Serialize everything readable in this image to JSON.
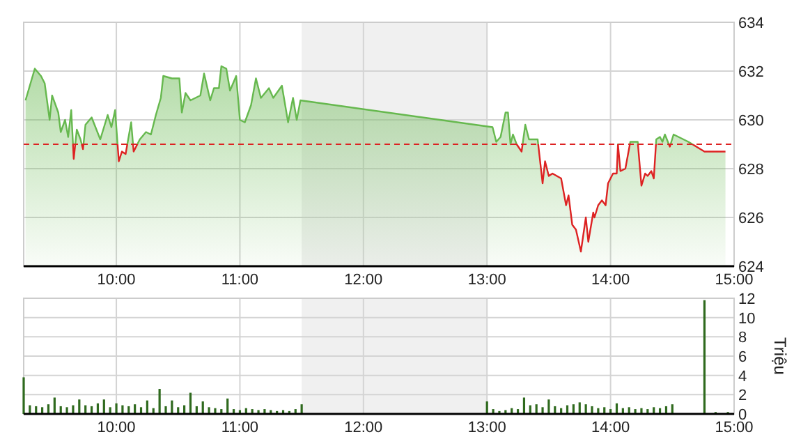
{
  "chart_data": [
    {
      "type": "area",
      "xlim": [
        9.25,
        15
      ],
      "ylim": [
        624,
        634
      ],
      "yticks": [
        624,
        626,
        628,
        630,
        632,
        634
      ],
      "xticks": [
        {
          "value": 10,
          "label": "10:00"
        },
        {
          "value": 11,
          "label": "11:00"
        },
        {
          "value": 12,
          "label": "12:00"
        },
        {
          "value": 13,
          "label": "13:00"
        },
        {
          "value": 14,
          "label": "14:00"
        },
        {
          "value": 15,
          "label": "15:00"
        }
      ],
      "grid": true,
      "line_style": "solid",
      "bands": [
        {
          "axis": "x",
          "from": 11.5,
          "to": 13,
          "color": "#f0f0f0"
        }
      ],
      "ref_lines": [
        {
          "axis": "y",
          "value": 629,
          "color": "#dd2222",
          "line_style": "dashed"
        }
      ],
      "series": [
        {
          "color": "#66b84e",
          "x": [
            9.265,
            9.34,
            9.39,
            9.42,
            9.46,
            9.48,
            9.53,
            9.55,
            9.585,
            9.61,
            9.635,
            9.655,
            9.68,
            9.71,
            9.73,
            9.75,
            9.8,
            9.87,
            9.93,
            9.96,
            9.99,
            10.02,
            10.045,
            10.075,
            10.12,
            10.14,
            10.19,
            10.24,
            10.28,
            10.32,
            10.36,
            10.38,
            10.45,
            10.51,
            10.53,
            10.56,
            10.6,
            10.68,
            10.71,
            10.76,
            10.79,
            10.83,
            10.85,
            10.89,
            10.92,
            10.97,
            11.0,
            11.04,
            11.09,
            11.13,
            11.17,
            11.235,
            11.27,
            11.34,
            11.39,
            11.43,
            11.46,
            11.49,
            13.045,
            13.075,
            13.11,
            13.15,
            13.17,
            13.19,
            13.21,
            13.24,
            13.28,
            13.31,
            13.34,
            13.41,
            13.45,
            13.47,
            13.5,
            13.53,
            13.6,
            13.64,
            13.66,
            13.69,
            13.72,
            13.76,
            13.8,
            13.82,
            13.86,
            13.87,
            13.9,
            13.93,
            13.96,
            13.98,
            14.02,
            14.05,
            14.06,
            14.08,
            14.12,
            14.16,
            14.22,
            14.25,
            14.28,
            14.3,
            14.33,
            14.35,
            14.37,
            14.4,
            14.42,
            14.44,
            14.48,
            14.51,
            14.63,
            14.76,
            14.93
          ],
          "values": [
            630.8,
            632.1,
            631.8,
            631.5,
            630.0,
            631.0,
            630.3,
            629.5,
            630.0,
            629.3,
            630.4,
            628.4,
            629.6,
            629.2,
            628.8,
            629.8,
            630.1,
            629.2,
            630.2,
            629.7,
            630.4,
            628.3,
            628.7,
            628.6,
            629.9,
            628.7,
            629.2,
            629.5,
            629.4,
            630.2,
            630.9,
            631.8,
            631.7,
            631.7,
            630.3,
            631.1,
            630.8,
            631.0,
            631.9,
            630.8,
            631.3,
            631.3,
            632.2,
            632.1,
            631.2,
            631.8,
            630.0,
            629.9,
            630.6,
            631.7,
            630.9,
            631.3,
            630.9,
            631.4,
            629.9,
            630.9,
            630.0,
            630.8,
            629.7,
            629.1,
            629.3,
            630.3,
            630.3,
            629.0,
            629.4,
            629.0,
            628.7,
            629.8,
            629.2,
            629.2,
            627.4,
            628.3,
            627.7,
            627.8,
            627.6,
            626.5,
            626.9,
            625.7,
            625.5,
            624.6,
            626.0,
            625.0,
            626.2,
            626.0,
            626.5,
            626.7,
            626.5,
            627.4,
            627.8,
            627.8,
            629.0,
            627.9,
            628.0,
            629.1,
            629.1,
            627.3,
            627.8,
            627.7,
            627.9,
            627.6,
            629.2,
            629.3,
            629.1,
            629.4,
            628.9,
            629.4,
            629.1,
            628.7,
            628.7
          ]
        }
      ]
    },
    {
      "type": "bar",
      "xlim": [
        9.25,
        15
      ],
      "ylim": [
        0,
        12
      ],
      "yticks": [
        0,
        2,
        4,
        6,
        8,
        10,
        12
      ],
      "ylabel": "Triệu",
      "xticks": [
        {
          "value": 10,
          "label": "10:00"
        },
        {
          "value": 11,
          "label": "11:00"
        },
        {
          "value": 12,
          "label": "12:00"
        },
        {
          "value": 13,
          "label": "13:00"
        },
        {
          "value": 14,
          "label": "14:00"
        },
        {
          "value": 15,
          "label": "15:00"
        }
      ],
      "grid": true,
      "bands": [
        {
          "axis": "x",
          "from": 11.5,
          "to": 13,
          "color": "#f0f0f0"
        }
      ],
      "series": [
        {
          "color": "#2f6a1e",
          "x": [
            9.25,
            9.3,
            9.35,
            9.4,
            9.45,
            9.5,
            9.55,
            9.6,
            9.65,
            9.7,
            9.75,
            9.8,
            9.85,
            9.9,
            9.95,
            10.0,
            10.05,
            10.1,
            10.15,
            10.2,
            10.25,
            10.3,
            10.35,
            10.4,
            10.45,
            10.5,
            10.55,
            10.6,
            10.65,
            10.7,
            10.75,
            10.8,
            10.85,
            10.9,
            10.95,
            11.0,
            11.05,
            11.1,
            11.15,
            11.2,
            11.25,
            11.3,
            11.35,
            11.4,
            11.45,
            11.5,
            13.0,
            13.05,
            13.1,
            13.15,
            13.2,
            13.25,
            13.3,
            13.35,
            13.4,
            13.45,
            13.5,
            13.55,
            13.6,
            13.65,
            13.7,
            13.75,
            13.8,
            13.85,
            13.9,
            13.95,
            14.0,
            14.05,
            14.1,
            14.15,
            14.2,
            14.25,
            14.3,
            14.35,
            14.4,
            14.45,
            14.5,
            14.76,
            14.85,
            14.95
          ],
          "values": [
            3.8,
            0.9,
            0.8,
            0.7,
            1.0,
            1.7,
            0.8,
            0.7,
            0.9,
            1.5,
            0.9,
            0.8,
            1.1,
            1.5,
            0.7,
            1.1,
            0.9,
            0.8,
            1.0,
            0.7,
            1.4,
            0.6,
            2.6,
            0.8,
            1.4,
            0.7,
            0.9,
            2.2,
            0.8,
            1.3,
            0.7,
            0.6,
            0.5,
            1.6,
            0.5,
            0.4,
            0.6,
            0.5,
            0.4,
            0.5,
            0.4,
            0.3,
            0.4,
            0.3,
            0.5,
            1.0,
            1.3,
            0.5,
            0.3,
            0.4,
            0.6,
            0.5,
            1.7,
            0.9,
            1.0,
            0.7,
            1.5,
            0.8,
            0.6,
            0.9,
            1.0,
            1.2,
            1.0,
            0.8,
            0.6,
            0.7,
            0.5,
            1.1,
            0.6,
            0.7,
            0.5,
            0.6,
            0.5,
            0.7,
            0.6,
            0.8,
            1.0,
            11.8,
            0.2,
            0.2
          ]
        }
      ]
    }
  ]
}
